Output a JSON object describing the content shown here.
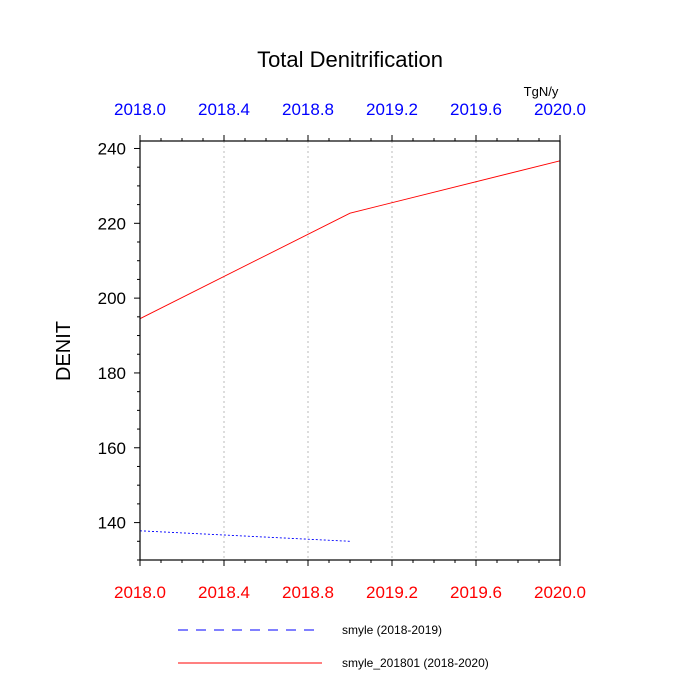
{
  "chart_data": {
    "type": "line",
    "title": "Total Denitrification",
    "units": "TgN/y",
    "ylabel": "DENIT",
    "xlabel": "",
    "xlim": [
      2018.0,
      2020.0
    ],
    "ylim": [
      130,
      242
    ],
    "x_ticks": [
      "2018.0",
      "2018.4",
      "2018.8",
      "2019.2",
      "2019.6",
      "2020.0"
    ],
    "x_tick_values": [
      2018.0,
      2018.4,
      2018.8,
      2019.2,
      2019.6,
      2020.0
    ],
    "y_ticks": [
      "140",
      "160",
      "180",
      "200",
      "220",
      "240"
    ],
    "y_tick_values": [
      140,
      160,
      180,
      200,
      220,
      240
    ],
    "grid": "vertical dotted",
    "legend_position": "bottom",
    "top_axis_color": "#0000ff",
    "bottom_axis_color": "#ff0000",
    "series": [
      {
        "name": "smyle (2018-2019)",
        "color": "#0000ff",
        "style": "dashed",
        "x": [
          2018.0,
          2019.0
        ],
        "y": [
          137.8,
          135.0
        ]
      },
      {
        "name": "smyle_201801 (2018-2020)",
        "color": "#ff0000",
        "style": "solid",
        "x": [
          2018.0,
          2019.0,
          2020.0
        ],
        "y": [
          194.5,
          222.7,
          236.7
        ]
      }
    ]
  }
}
